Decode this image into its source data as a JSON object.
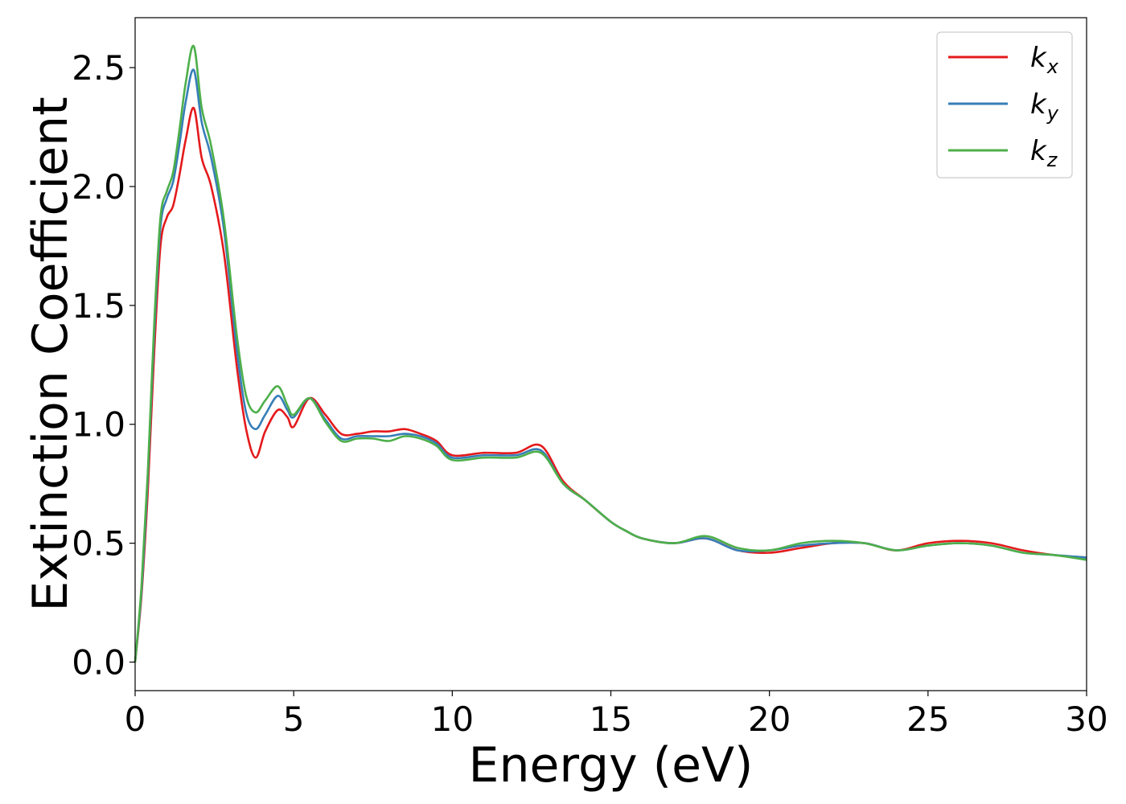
{
  "chart_data": {
    "type": "line",
    "title": "",
    "xlabel": "Energy (eV)",
    "ylabel": "Extinction Coefficient",
    "xlim": [
      0,
      30
    ],
    "ylim": [
      -0.12,
      2.71
    ],
    "xticks": [
      0,
      5,
      10,
      15,
      20,
      25,
      30
    ],
    "xtick_labels": [
      "0",
      "5",
      "10",
      "15",
      "20",
      "25",
      "30"
    ],
    "yticks": [
      0.0,
      0.5,
      1.0,
      1.5,
      2.0,
      2.5
    ],
    "ytick_labels": [
      "0.0",
      "0.5",
      "1.0",
      "1.5",
      "2.0",
      "2.5"
    ],
    "grid": false,
    "legend_position": "top-right",
    "x": [
      0,
      0.2,
      0.4,
      0.6,
      0.8,
      1.0,
      1.2,
      1.4,
      1.6,
      1.85,
      2.1,
      2.4,
      2.8,
      3.2,
      3.5,
      3.8,
      4.1,
      4.5,
      4.8,
      5.0,
      5.5,
      6.0,
      6.5,
      7.0,
      7.5,
      8.0,
      8.5,
      9.0,
      9.5,
      10.0,
      11.0,
      12.0,
      12.8,
      13.5,
      14.2,
      15.0,
      15.5,
      16.0,
      17.0,
      18.0,
      19.0,
      20.0,
      21.0,
      22.0,
      23.0,
      24.0,
      25.0,
      26.0,
      27.0,
      28.0,
      29.0,
      30.0
    ],
    "series": [
      {
        "name": "k",
        "subscript": "x",
        "color": "#e41a1c",
        "values": [
          0.0,
          0.28,
          0.72,
          1.3,
          1.75,
          1.87,
          1.92,
          2.05,
          2.2,
          2.33,
          2.12,
          2.0,
          1.72,
          1.25,
          0.98,
          0.86,
          0.97,
          1.06,
          1.03,
          0.99,
          1.11,
          1.04,
          0.96,
          0.96,
          0.97,
          0.97,
          0.98,
          0.96,
          0.93,
          0.87,
          0.88,
          0.88,
          0.91,
          0.76,
          0.68,
          0.59,
          0.55,
          0.52,
          0.5,
          0.52,
          0.47,
          0.46,
          0.48,
          0.5,
          0.5,
          0.47,
          0.5,
          0.51,
          0.5,
          0.47,
          0.45,
          0.44
        ]
      },
      {
        "name": "k",
        "subscript": "y",
        "color": "#377eb8",
        "values": [
          0.0,
          0.3,
          0.78,
          1.38,
          1.83,
          1.95,
          2.02,
          2.18,
          2.36,
          2.49,
          2.27,
          2.12,
          1.82,
          1.32,
          1.05,
          0.98,
          1.04,
          1.12,
          1.06,
          1.03,
          1.11,
          1.02,
          0.94,
          0.95,
          0.95,
          0.95,
          0.96,
          0.95,
          0.92,
          0.86,
          0.87,
          0.87,
          0.89,
          0.75,
          0.68,
          0.59,
          0.55,
          0.52,
          0.5,
          0.52,
          0.47,
          0.47,
          0.49,
          0.5,
          0.5,
          0.47,
          0.49,
          0.5,
          0.49,
          0.46,
          0.45,
          0.44
        ]
      },
      {
        "name": "k",
        "subscript": "z",
        "color": "#4daf4a",
        "values": [
          0.0,
          0.32,
          0.8,
          1.42,
          1.87,
          1.98,
          2.06,
          2.24,
          2.44,
          2.59,
          2.33,
          2.17,
          1.86,
          1.38,
          1.12,
          1.05,
          1.1,
          1.16,
          1.08,
          1.04,
          1.11,
          1.01,
          0.93,
          0.94,
          0.94,
          0.93,
          0.95,
          0.94,
          0.91,
          0.85,
          0.86,
          0.86,
          0.88,
          0.75,
          0.68,
          0.59,
          0.55,
          0.52,
          0.5,
          0.53,
          0.48,
          0.47,
          0.5,
          0.51,
          0.5,
          0.47,
          0.49,
          0.5,
          0.49,
          0.46,
          0.45,
          0.43
        ]
      }
    ]
  }
}
